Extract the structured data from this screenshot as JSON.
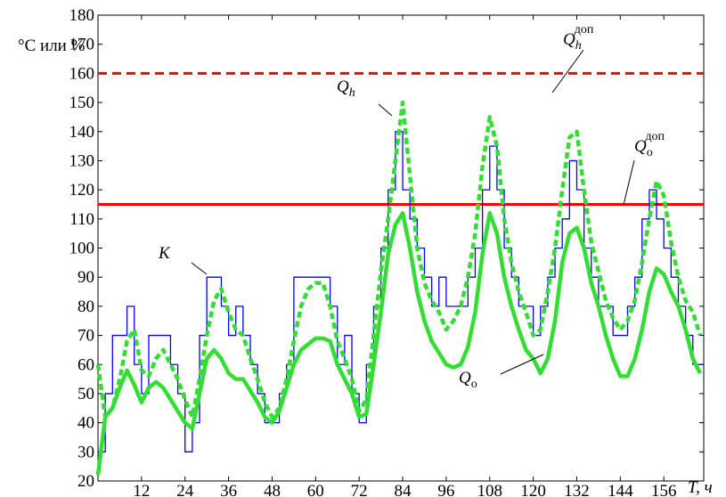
{
  "chart_data": {
    "type": "line",
    "ylabel": "°C или %",
    "xlabel": "T, ч",
    "xlim": [
      0,
      167
    ],
    "ylim": [
      20,
      180
    ],
    "xticks": [
      12,
      24,
      36,
      48,
      60,
      72,
      84,
      96,
      108,
      120,
      132,
      144,
      156
    ],
    "yticks": [
      20,
      30,
      40,
      50,
      60,
      70,
      80,
      90,
      100,
      110,
      120,
      130,
      140,
      150,
      160,
      170,
      180
    ],
    "x": [
      0,
      2,
      4,
      6,
      8,
      10,
      12,
      14,
      16,
      18,
      20,
      22,
      24,
      26,
      28,
      30,
      32,
      34,
      36,
      38,
      40,
      42,
      44,
      46,
      48,
      50,
      52,
      54,
      56,
      58,
      60,
      62,
      64,
      66,
      68,
      70,
      72,
      74,
      76,
      78,
      80,
      82,
      84,
      86,
      88,
      90,
      92,
      94,
      96,
      98,
      100,
      102,
      104,
      106,
      108,
      110,
      112,
      114,
      116,
      118,
      120,
      122,
      124,
      126,
      128,
      130,
      132,
      134,
      136,
      138,
      140,
      142,
      144,
      146,
      148,
      150,
      152,
      154,
      156,
      158,
      160,
      162,
      164,
      166
    ],
    "series": [
      {
        "label": {
          "text": "K"
        },
        "color": "#0000ff",
        "style": "step",
        "values": [
          30,
          50,
          70,
          70,
          80,
          60,
          50,
          70,
          70,
          70,
          60,
          50,
          30,
          40,
          70,
          90,
          90,
          80,
          70,
          80,
          70,
          60,
          50,
          40,
          40,
          50,
          60,
          90,
          90,
          90,
          90,
          90,
          80,
          60,
          70,
          50,
          40,
          60,
          80,
          100,
          120,
          140,
          120,
          110,
          100,
          90,
          80,
          90,
          80,
          80,
          80,
          90,
          100,
          120,
          135,
          120,
          100,
          90,
          80,
          80,
          70,
          80,
          90,
          100,
          110,
          130,
          120,
          100,
          90,
          80,
          80,
          70,
          70,
          80,
          90,
          110,
          120,
          110,
          100,
          90,
          80,
          70,
          60,
          60
        ]
      },
      {
        "label": {
          "text": "Q",
          "sub": "h"
        },
        "color": "#33dd33",
        "style": "dashed",
        "values": [
          60,
          42,
          45,
          55,
          68,
          72,
          58,
          56,
          62,
          65,
          60,
          55,
          48,
          42,
          55,
          70,
          82,
          86,
          78,
          72,
          70,
          62,
          55,
          47,
          42,
          45,
          55,
          68,
          80,
          86,
          88,
          88,
          80,
          68,
          62,
          55,
          44,
          48,
          70,
          92,
          110,
          130,
          150,
          125,
          100,
          88,
          82,
          78,
          72,
          75,
          80,
          90,
          105,
          128,
          145,
          135,
          110,
          95,
          85,
          78,
          70,
          72,
          85,
          100,
          120,
          138,
          140,
          120,
          102,
          92,
          82,
          76,
          72,
          75,
          82,
          95,
          110,
          123,
          118,
          102,
          90,
          82,
          78,
          70
        ]
      },
      {
        "label": {
          "text": "Q",
          "sub": "о"
        },
        "color": "#33dd33",
        "style": "solid",
        "values": [
          22,
          42,
          45,
          52,
          58,
          53,
          47,
          52,
          54,
          52,
          48,
          44,
          40,
          38,
          50,
          62,
          65,
          62,
          57,
          55,
          55,
          51,
          47,
          42,
          40,
          44,
          52,
          60,
          65,
          67,
          69,
          69,
          68,
          60,
          55,
          50,
          42,
          43,
          60,
          78,
          98,
          108,
          112,
          100,
          85,
          75,
          68,
          64,
          60,
          59,
          60,
          66,
          78,
          98,
          112,
          105,
          90,
          80,
          72,
          65,
          62,
          57,
          62,
          75,
          95,
          105,
          107,
          100,
          88,
          80,
          70,
          62,
          56,
          56,
          62,
          72,
          85,
          93,
          91,
          85,
          80,
          72,
          62,
          57
        ]
      }
    ],
    "hlines": [
      {
        "label": {
          "text": "Q",
          "sub": "h",
          "sup": "доп"
        },
        "value": 160,
        "color": "#ff0000",
        "style": "dashed"
      },
      {
        "label": {
          "text": "Q",
          "sub": "о",
          "sup": "доп"
        },
        "value": 115,
        "color": "#ff0000",
        "style": "solid"
      }
    ]
  }
}
